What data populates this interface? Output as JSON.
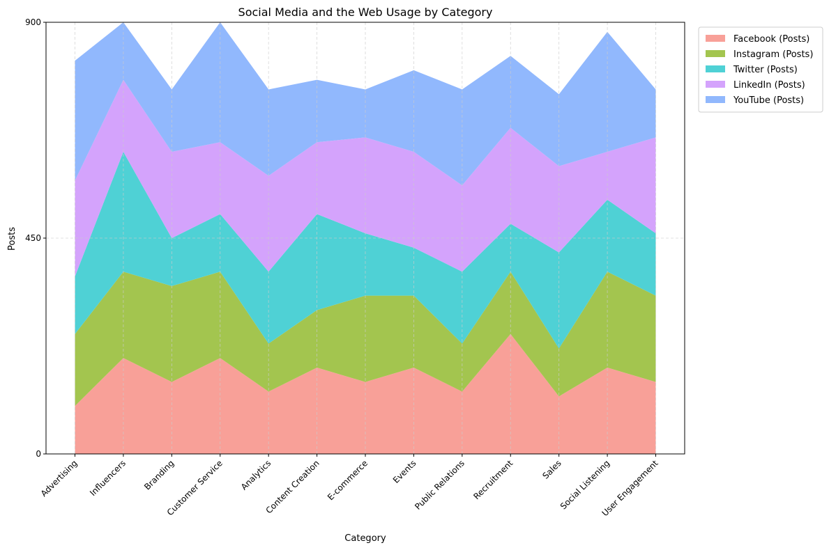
{
  "chart_data": {
    "type": "area",
    "stacked": true,
    "title": "Social Media and the Web Usage by Category",
    "xlabel": "Category",
    "ylabel": "Posts",
    "ylim": [
      0,
      900
    ],
    "yticks": [
      0,
      450,
      900
    ],
    "grid": true,
    "legend_position": "upper-right-outside",
    "categories": [
      "Advertising",
      "Influencers",
      "Branding",
      "Customer Service",
      "Analytics",
      "Content Creation",
      "E-commerce",
      "Events",
      "Public Relations",
      "Recruitment",
      "Sales",
      "Social Listening",
      "User Engagement"
    ],
    "series": [
      {
        "name": "Facebook (Posts)",
        "color": "#f8a098",
        "values": [
          100,
          200,
          150,
          200,
          130,
          180,
          150,
          180,
          130,
          250,
          120,
          180,
          150
        ]
      },
      {
        "name": "Instagram (Posts)",
        "color": "#a3c54f",
        "values": [
          150,
          180,
          200,
          180,
          100,
          120,
          180,
          150,
          100,
          130,
          100,
          200,
          180
        ]
      },
      {
        "name": "Twitter (Posts)",
        "color": "#4fd1d5",
        "values": [
          120,
          250,
          100,
          120,
          150,
          200,
          130,
          100,
          150,
          100,
          200,
          150,
          130
        ]
      },
      {
        "name": "LinkedIn (Posts)",
        "color": "#d4a3fc",
        "values": [
          200,
          150,
          180,
          150,
          200,
          150,
          200,
          200,
          180,
          200,
          180,
          100,
          200
        ]
      },
      {
        "name": "YouTube (Posts)",
        "color": "#91b8fd",
        "values": [
          250,
          120,
          130,
          250,
          180,
          130,
          100,
          170,
          200,
          150,
          150,
          250,
          100
        ]
      }
    ]
  }
}
